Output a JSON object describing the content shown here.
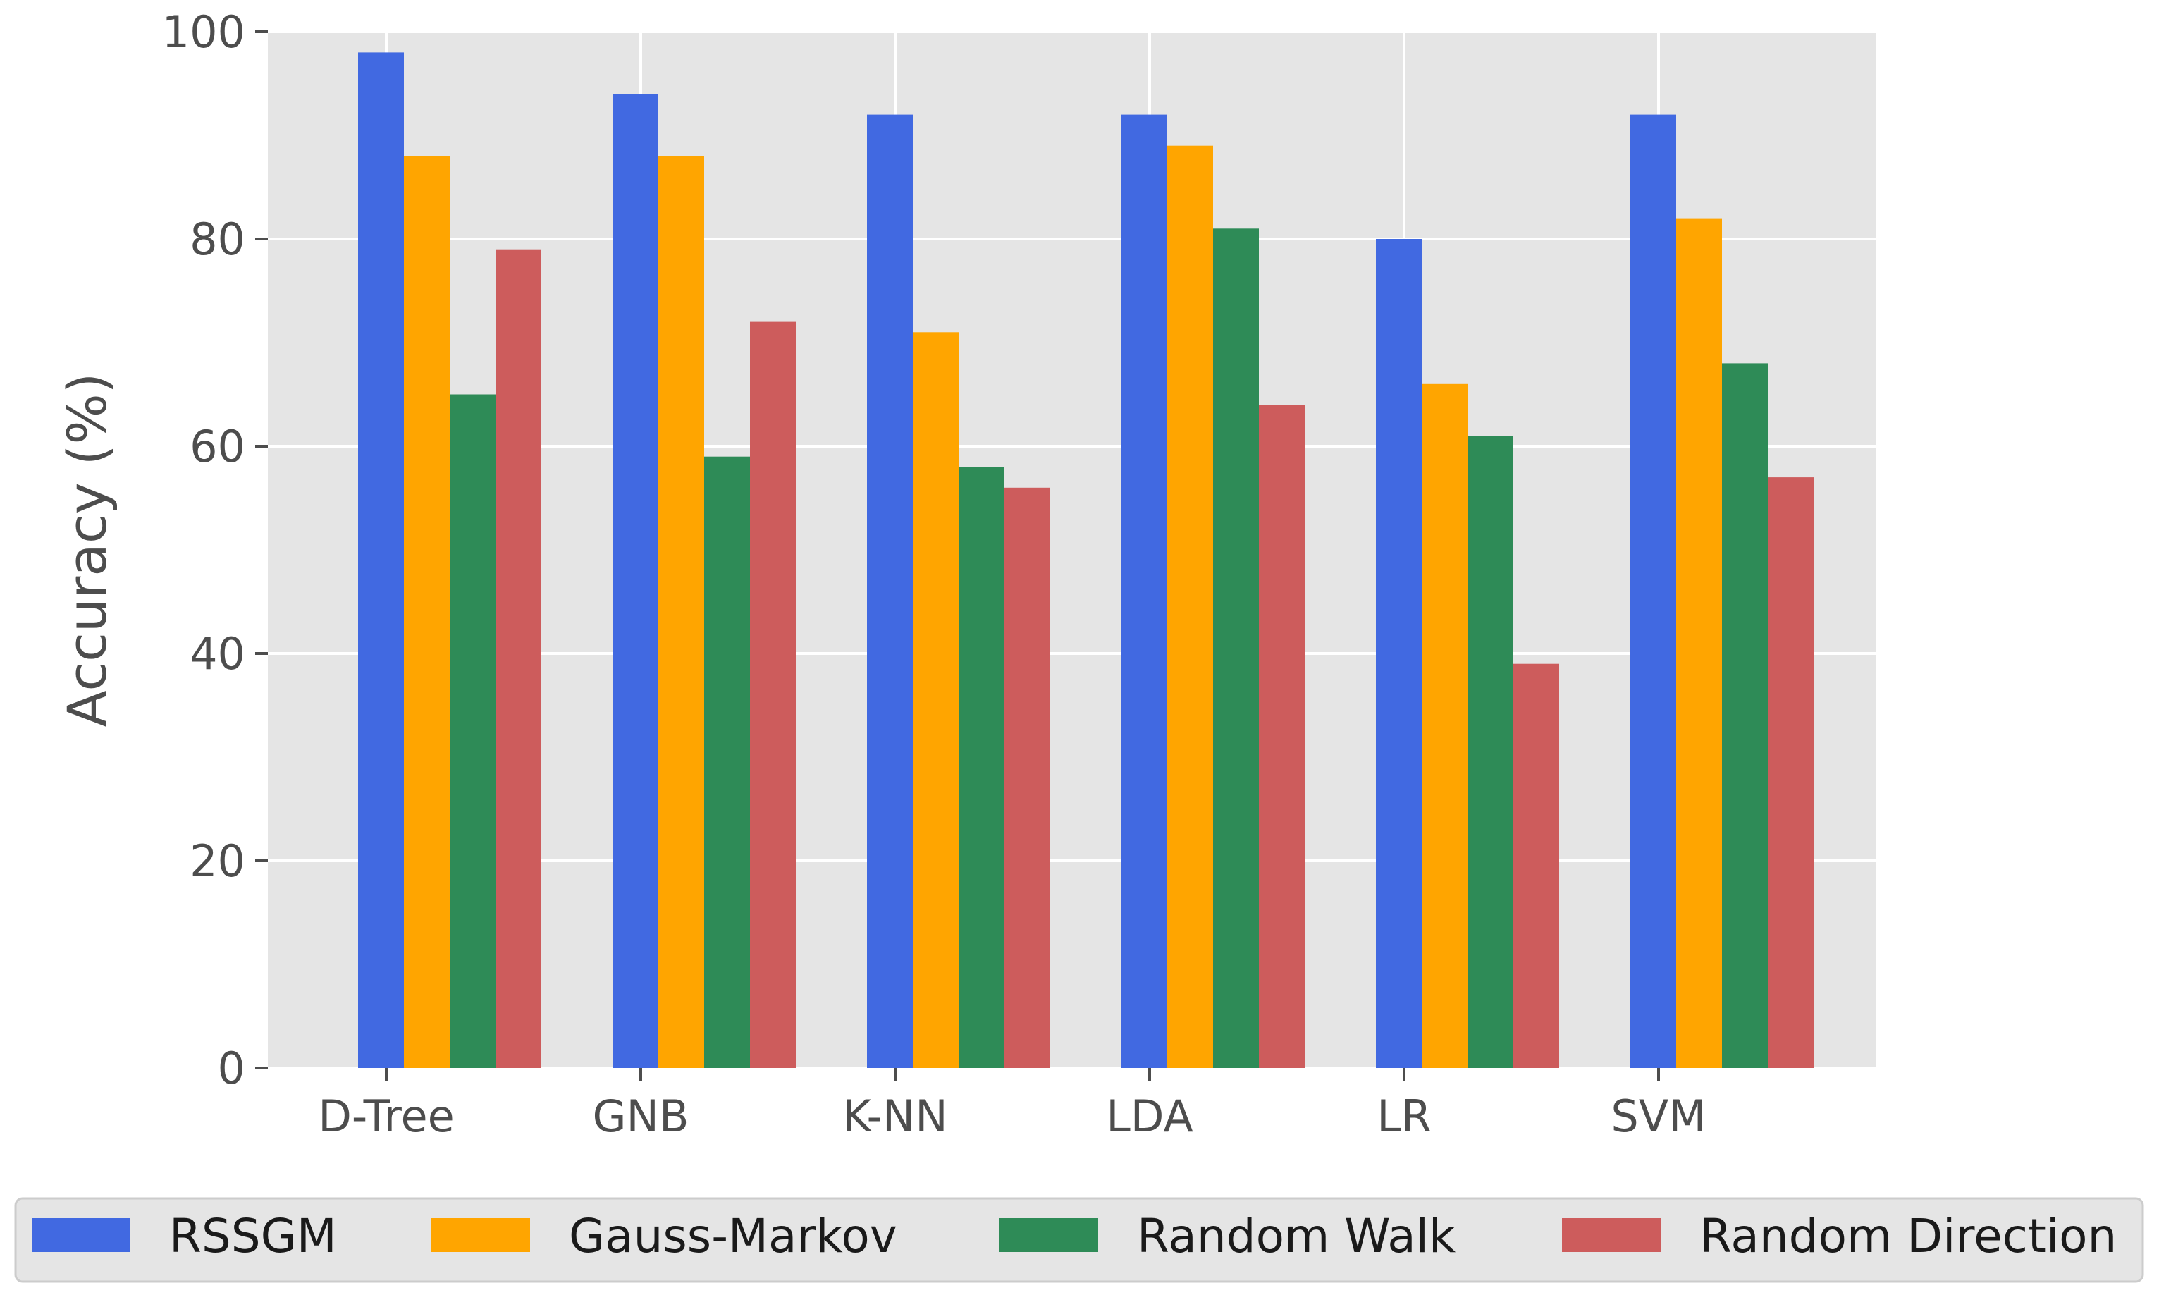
{
  "chart_data": {
    "type": "bar",
    "ylabel": "Accuracy (%)",
    "xlabel": "",
    "ylim": [
      0,
      100
    ],
    "yticks": [
      0,
      20,
      40,
      60,
      80,
      100
    ],
    "grid": true,
    "legend_position": "bottom",
    "categories": [
      "D-Tree",
      "GNB",
      "K-NN",
      "LDA",
      "LR",
      "SVM"
    ],
    "series": [
      {
        "name": "RSSGM",
        "color": "#4169e1",
        "values": [
          98,
          94,
          92,
          92,
          80,
          92
        ]
      },
      {
        "name": "Gauss-Markov",
        "color": "#ffa500",
        "values": [
          88,
          88,
          71,
          89,
          66,
          82
        ]
      },
      {
        "name": "Random Walk",
        "color": "#2e8b57",
        "values": [
          65,
          59,
          58,
          81,
          61,
          68
        ]
      },
      {
        "name": "Random Direction",
        "color": "#cd5c5c",
        "values": [
          79,
          72,
          56,
          64,
          39,
          57
        ]
      }
    ]
  }
}
